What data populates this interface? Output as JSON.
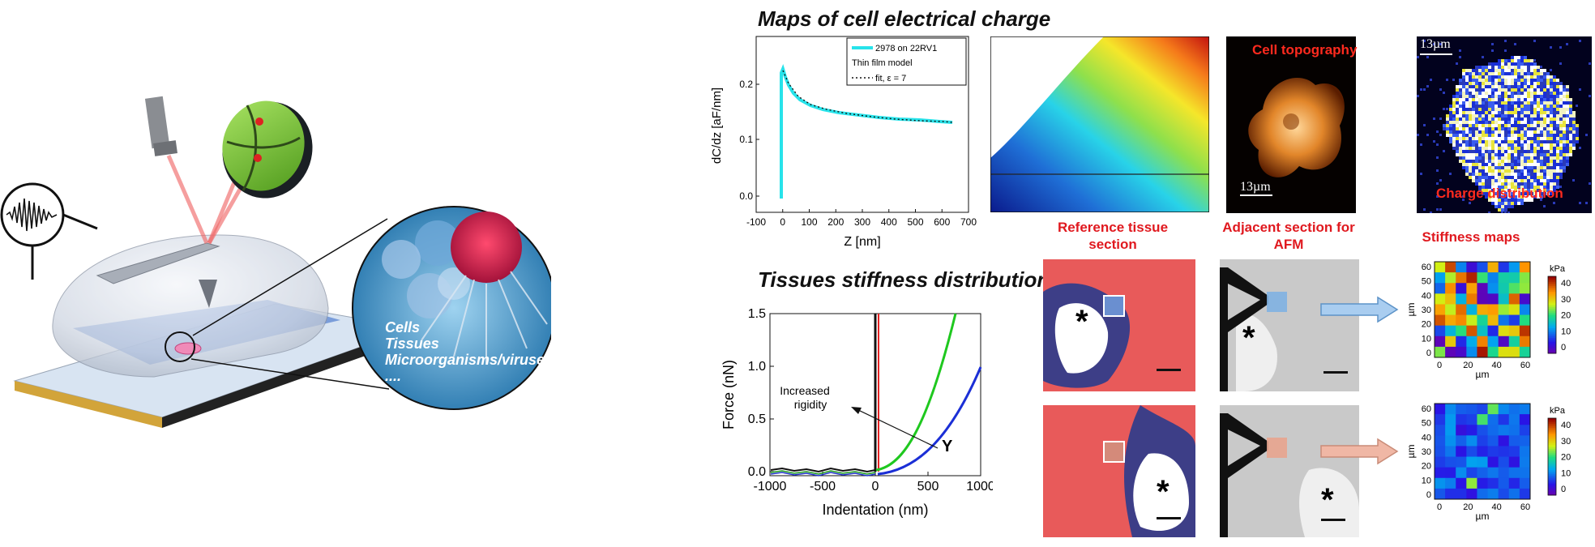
{
  "titles": {
    "charge": "Maps of cell electrical charge",
    "stiffness": "Tissues stiffness distribution"
  },
  "scheme": {
    "zoom_labels": [
      "Cells",
      "Tissues",
      "Microorganisms/viruses",
      "...."
    ]
  },
  "dc_chart": {
    "ylabel": "dC/dz [aF/nm]",
    "xlabel": "Z [nm]",
    "xticks": [
      "-100",
      "0",
      "100",
      "200",
      "300",
      "400",
      "500",
      "600",
      "700"
    ],
    "yticks": [
      "0.0",
      "0.1",
      "0.2"
    ],
    "legend": [
      "2978 on 22RV1",
      "Thin film model",
      "fit, ε = 7"
    ]
  },
  "force_chart": {
    "ylabel": "Force (nN)",
    "xlabel": "Indentation (nm)",
    "xticks": [
      "-1000",
      "-500",
      "0",
      "500",
      "1000"
    ],
    "yticks": [
      "0.0",
      "0.5",
      "1.0",
      "1.5"
    ],
    "annot_rigidity": "Increased rigidity",
    "annot_y": "Y"
  },
  "panels": {
    "topography_label": "Cell topography",
    "topography_scale": "13µm",
    "charge_label": "Charge distribution",
    "charge_scale": "13µm",
    "ref_tissue": "Reference tissue section",
    "adjacent": "Adjacent section for AFM",
    "stiffness_maps": "Stiffness maps",
    "asterisk": "*"
  },
  "heatmaps": {
    "xlabel": "µm",
    "ylabel": "µm",
    "ticks": [
      "0",
      "20",
      "40",
      "60"
    ],
    "yticks": [
      "0",
      "10",
      "20",
      "30",
      "40",
      "50",
      "60"
    ],
    "cbar_title": "kPa",
    "cbar_ticks": [
      "0",
      "10",
      "20",
      "30",
      "40"
    ]
  },
  "colors": {
    "cyan_curve": "#27e3ea",
    "label_red": "#e0191f"
  }
}
